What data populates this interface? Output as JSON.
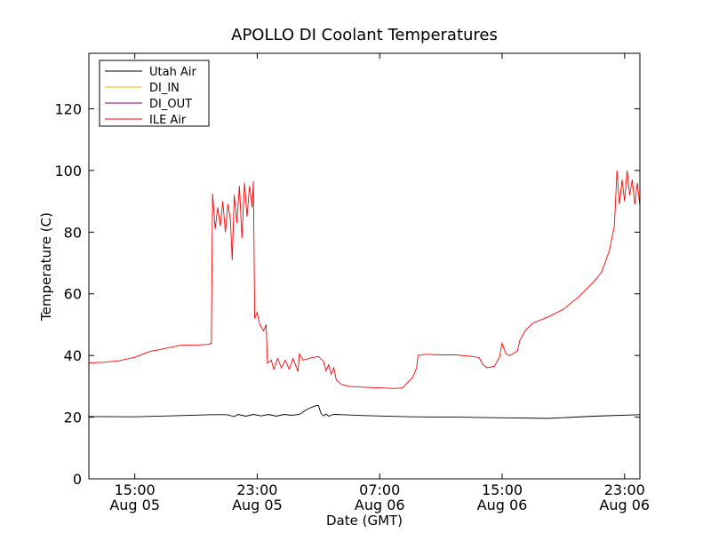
{
  "chart_data": {
    "type": "line",
    "title": "APOLLO DI Coolant Temperatures",
    "xlabel": "Date (GMT)",
    "ylabel": "Temperature (C)",
    "xlim": [
      "2013-08-05 12:00",
      "2013-08-07 00:00"
    ],
    "ylim": [
      0,
      138
    ],
    "grid": false,
    "legend_position": "top-left",
    "x_ticks": [
      {
        "line1": "15:00",
        "line2": "Aug 05"
      },
      {
        "line1": "23:00",
        "line2": "Aug 05"
      },
      {
        "line1": "07:00",
        "line2": "Aug 06"
      },
      {
        "line1": "15:00",
        "line2": "Aug 06"
      },
      {
        "line1": "23:00",
        "line2": "Aug 06"
      }
    ],
    "y_ticks": [
      "0",
      "20",
      "40",
      "60",
      "80",
      "100",
      "120"
    ],
    "series": [
      {
        "name": "Utah Air",
        "color": "#000000",
        "points": [
          [
            "2013-08-05 12:00",
            20.2
          ],
          [
            "2013-08-05 15:00",
            20.1
          ],
          [
            "2013-08-05 18:00",
            20.5
          ],
          [
            "2013-08-05 20:00",
            20.8
          ],
          [
            "2013-08-05 21:00",
            20.8
          ],
          [
            "2013-08-05 21:30",
            20.2
          ],
          [
            "2013-08-05 21:45",
            20.9
          ],
          [
            "2013-08-05 22:15",
            20.3
          ],
          [
            "2013-08-05 22:45",
            20.9
          ],
          [
            "2013-08-05 23:15",
            20.4
          ],
          [
            "2013-08-05 23:45",
            20.9
          ],
          [
            "2013-08-06 00:15",
            20.3
          ],
          [
            "2013-08-06 00:45",
            20.9
          ],
          [
            "2013-08-06 01:15",
            20.6
          ],
          [
            "2013-08-06 01:45",
            20.9
          ],
          [
            "2013-08-06 02:15",
            22.5
          ],
          [
            "2013-08-06 02:45",
            23.6
          ],
          [
            "2013-08-06 03:00",
            23.8
          ],
          [
            "2013-08-06 03:10",
            21.2
          ],
          [
            "2013-08-06 03:20",
            20.4
          ],
          [
            "2013-08-06 03:30",
            21.0
          ],
          [
            "2013-08-06 03:40",
            20.3
          ],
          [
            "2013-08-06 04:00",
            20.9
          ],
          [
            "2013-08-06 06:00",
            20.5
          ],
          [
            "2013-08-06 09:00",
            20.1
          ],
          [
            "2013-08-06 12:00",
            20.0
          ],
          [
            "2013-08-06 15:00",
            19.8
          ],
          [
            "2013-08-06 18:00",
            19.6
          ],
          [
            "2013-08-06 21:00",
            20.3
          ],
          [
            "2013-08-07 00:00",
            20.8
          ]
        ]
      },
      {
        "name": "DI_IN",
        "color": "#e6b800",
        "points": []
      },
      {
        "name": "DI_OUT",
        "color": "#800080",
        "points": []
      },
      {
        "name": "ILE Air",
        "color": "#ff0000",
        "points": [
          [
            "2013-08-05 12:00",
            37.6
          ],
          [
            "2013-08-05 13:00",
            37.8
          ],
          [
            "2013-08-05 14:00",
            38.3
          ],
          [
            "2013-08-05 15:00",
            39.4
          ],
          [
            "2013-08-05 16:00",
            41.3
          ],
          [
            "2013-08-05 17:00",
            42.3
          ],
          [
            "2013-08-05 18:00",
            43.3
          ],
          [
            "2013-08-05 19:00",
            43.4
          ],
          [
            "2013-08-05 19:50",
            43.6
          ],
          [
            "2013-08-05 20:00",
            44.0
          ],
          [
            "2013-08-05 20:05",
            92.5
          ],
          [
            "2013-08-05 20:15",
            81.0
          ],
          [
            "2013-08-05 20:25",
            88.0
          ],
          [
            "2013-08-05 20:35",
            82.0
          ],
          [
            "2013-08-05 20:45",
            90.0
          ],
          [
            "2013-08-05 20:55",
            80.0
          ],
          [
            "2013-08-05 21:05",
            89.0
          ],
          [
            "2013-08-05 21:15",
            84.0
          ],
          [
            "2013-08-05 21:22",
            71.0
          ],
          [
            "2013-08-05 21:30",
            92.0
          ],
          [
            "2013-08-05 21:40",
            83.0
          ],
          [
            "2013-08-05 21:50",
            95.0
          ],
          [
            "2013-08-05 22:00",
            78.0
          ],
          [
            "2013-08-05 22:10",
            96.0
          ],
          [
            "2013-08-05 22:20",
            85.0
          ],
          [
            "2013-08-05 22:30",
            95.0
          ],
          [
            "2013-08-05 22:40",
            88.0
          ],
          [
            "2013-08-05 22:45",
            96.5
          ],
          [
            "2013-08-05 22:50",
            52.0
          ],
          [
            "2013-08-05 23:00",
            54.0
          ],
          [
            "2013-08-05 23:10",
            50.0
          ],
          [
            "2013-08-05 23:25",
            48.0
          ],
          [
            "2013-08-05 23:35",
            50.0
          ],
          [
            "2013-08-05 23:40",
            37.5
          ],
          [
            "2013-08-05 23:55",
            38.5
          ],
          [
            "2013-08-06 00:05",
            35.5
          ],
          [
            "2013-08-06 00:20",
            39.0
          ],
          [
            "2013-08-06 00:35",
            36.0
          ],
          [
            "2013-08-06 00:50",
            38.5
          ],
          [
            "2013-08-06 01:05",
            35.5
          ],
          [
            "2013-08-06 01:20",
            39.0
          ],
          [
            "2013-08-06 01:40",
            34.8
          ],
          [
            "2013-08-06 01:45",
            40.5
          ],
          [
            "2013-08-06 02:00",
            38.5
          ],
          [
            "2013-08-06 02:30",
            39.2
          ],
          [
            "2013-08-06 03:00",
            39.7
          ],
          [
            "2013-08-06 03:20",
            38.0
          ],
          [
            "2013-08-06 03:30",
            35.0
          ],
          [
            "2013-08-06 03:40",
            37.0
          ],
          [
            "2013-08-06 03:50",
            34.0
          ],
          [
            "2013-08-06 04:00",
            36.0
          ],
          [
            "2013-08-06 04:10",
            32.0
          ],
          [
            "2013-08-06 04:30",
            30.6
          ],
          [
            "2013-08-06 05:00",
            30.0
          ],
          [
            "2013-08-06 06:00",
            29.7
          ],
          [
            "2013-08-06 07:00",
            29.5
          ],
          [
            "2013-08-06 08:00",
            29.3
          ],
          [
            "2013-08-06 08:30",
            29.5
          ],
          [
            "2013-08-06 09:10",
            33.0
          ],
          [
            "2013-08-06 09:25",
            36.0
          ],
          [
            "2013-08-06 09:30",
            40.0
          ],
          [
            "2013-08-06 10:00",
            40.4
          ],
          [
            "2013-08-06 11:00",
            40.2
          ],
          [
            "2013-08-06 12:00",
            40.2
          ],
          [
            "2013-08-06 13:00",
            39.7
          ],
          [
            "2013-08-06 13:30",
            39.3
          ],
          [
            "2013-08-06 13:45",
            37.0
          ],
          [
            "2013-08-06 14:00",
            36.0
          ],
          [
            "2013-08-06 14:30",
            36.5
          ],
          [
            "2013-08-06 14:50",
            39.5
          ],
          [
            "2013-08-06 15:00",
            44.0
          ],
          [
            "2013-08-06 15:15",
            40.5
          ],
          [
            "2013-08-06 15:30",
            40.0
          ],
          [
            "2013-08-06 16:00",
            41.5
          ],
          [
            "2013-08-06 16:10",
            45.0
          ],
          [
            "2013-08-06 16:30",
            48.0
          ],
          [
            "2013-08-06 17:00",
            50.5
          ],
          [
            "2013-08-06 18:00",
            52.5
          ],
          [
            "2013-08-06 19:00",
            55.0
          ],
          [
            "2013-08-06 20:00",
            59.0
          ],
          [
            "2013-08-06 21:00",
            64.0
          ],
          [
            "2013-08-06 21:30",
            67.0
          ],
          [
            "2013-08-06 22:00",
            74.0
          ],
          [
            "2013-08-06 22:20",
            82.0
          ],
          [
            "2013-08-06 22:30",
            100.0
          ],
          [
            "2013-08-06 22:40",
            89.0
          ],
          [
            "2013-08-06 22:50",
            97.0
          ],
          [
            "2013-08-06 23:00",
            90.0
          ],
          [
            "2013-08-06 23:10",
            100.0
          ],
          [
            "2013-08-06 23:20",
            92.0
          ],
          [
            "2013-08-06 23:30",
            97.0
          ],
          [
            "2013-08-06 23:40",
            89.0
          ],
          [
            "2013-08-06 23:50",
            96.0
          ],
          [
            "2013-08-07 00:00",
            88.5
          ]
        ]
      }
    ]
  }
}
